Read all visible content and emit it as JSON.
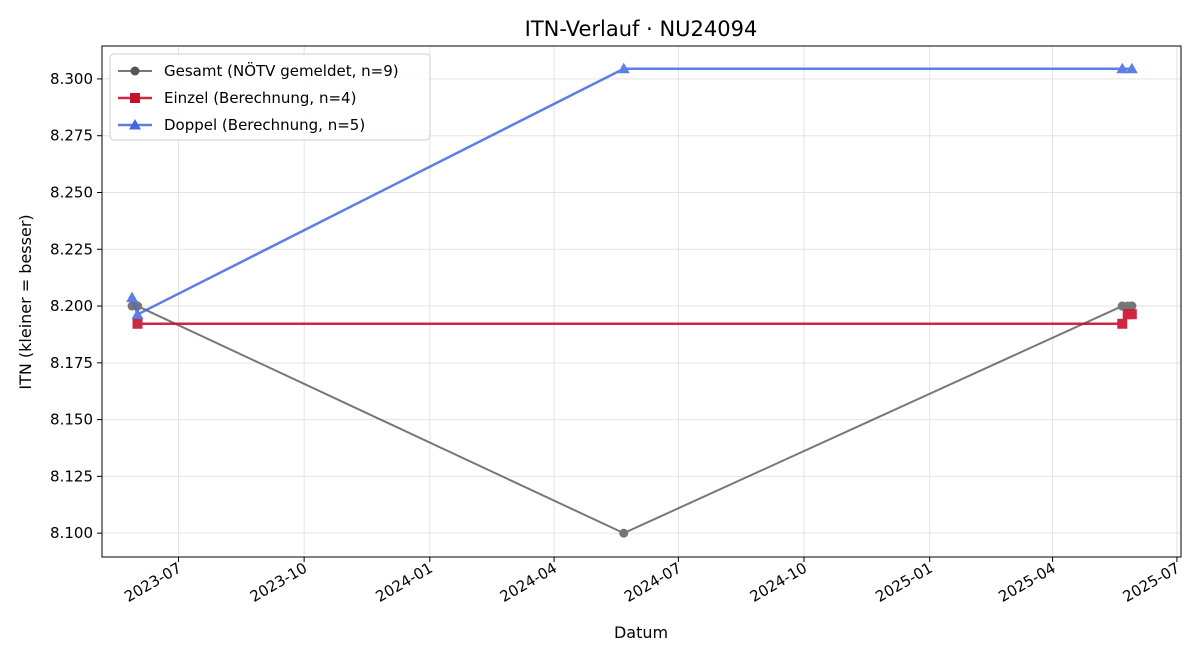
{
  "chart_data": {
    "type": "line",
    "title": "ITN-Verlauf · NU24094",
    "xlabel": "Datum",
    "ylabel": "ITN  (kleiner = besser)",
    "x_axis_type": "date",
    "xlim": [
      "2023-05-06",
      "2025-07-04"
    ],
    "ylim": [
      8.0895,
      8.3145
    ],
    "xticks": [
      "2023-07-01",
      "2023-10-01",
      "2024-01-01",
      "2024-04-01",
      "2024-07-01",
      "2024-10-01",
      "2025-01-01",
      "2025-04-01",
      "2025-07-01"
    ],
    "xtick_labels": [
      "2023-07",
      "2023-10",
      "2024-01",
      "2024-04",
      "2024-07",
      "2024-10",
      "2025-01",
      "2025-04",
      "2025-07"
    ],
    "yticks": [
      8.1,
      8.125,
      8.15,
      8.175,
      8.2,
      8.225,
      8.25,
      8.275,
      8.3
    ],
    "ytick_labels": [
      "8.100",
      "8.125",
      "8.150",
      "8.175",
      "8.200",
      "8.225",
      "8.250",
      "8.275",
      "8.300"
    ],
    "grid": true,
    "legend_position": "top-left",
    "series": [
      {
        "name": "Gesamt (NÖTV gemeldet, n=9)",
        "color": "#555555",
        "marker": "circle",
        "x": [
          "2023-05-28",
          "2023-06-01",
          "2023-06-01",
          "2024-05-22",
          "2025-05-22",
          "2025-05-22",
          "2025-05-26",
          "2025-05-29",
          "2025-05-29"
        ],
        "y": [
          8.2,
          8.2,
          8.2,
          8.1,
          8.2,
          8.2,
          8.2,
          8.2,
          8.2
        ]
      },
      {
        "name": "Einzel (Berechnung, n=4)",
        "color": "#c8102e",
        "marker": "square",
        "x": [
          "2023-06-01",
          "2025-05-22",
          "2025-05-26",
          "2025-05-29"
        ],
        "y": [
          8.1922,
          8.1922,
          8.1964,
          8.1964
        ]
      },
      {
        "name": "Doppel (Berechnung, n=5)",
        "color": "#4169e1",
        "marker": "triangle",
        "x": [
          "2023-05-28",
          "2023-06-01",
          "2024-05-22",
          "2025-05-22",
          "2025-05-29"
        ],
        "y": [
          8.2037,
          8.1963,
          8.3045,
          8.3045,
          8.3045
        ]
      }
    ]
  }
}
